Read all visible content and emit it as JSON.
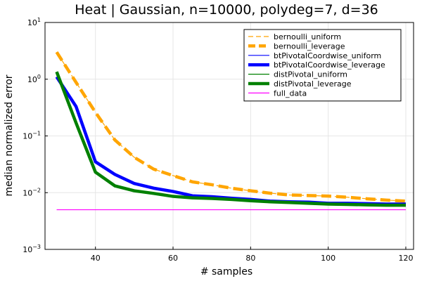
{
  "chart_data": {
    "type": "line",
    "title": "Heat | Gaussian, n=10000, polydeg=7, d=36",
    "xlabel": "# samples",
    "ylabel": "median normalized error",
    "xlim": [
      27,
      122
    ],
    "ylim": [
      0.001,
      10
    ],
    "yscale": "log",
    "grid": true,
    "legend_position": "top-right",
    "x_ticks": [
      40,
      60,
      80,
      100,
      120
    ],
    "x_tick_labels": [
      "40",
      "60",
      "80",
      "100",
      "120"
    ],
    "y_ticks": [
      0.001,
      0.01,
      0.1,
      1,
      10
    ],
    "y_tick_labels": [
      {
        "base": "10",
        "exp": "−3"
      },
      {
        "base": "10",
        "exp": "−2"
      },
      {
        "base": "10",
        "exp": "−1"
      },
      {
        "base": "10",
        "exp": "0"
      },
      {
        "base": "10",
        "exp": "1"
      }
    ],
    "x": [
      30,
      35,
      40,
      45,
      50,
      55,
      60,
      65,
      70,
      75,
      80,
      85,
      90,
      95,
      100,
      105,
      110,
      115,
      120
    ],
    "series": [
      {
        "name": "bernoulli_uniform",
        "color": "#FFA500",
        "width": 1.2,
        "dash": "8,5",
        "values": [
          3.0,
          0.88,
          0.26,
          0.085,
          0.042,
          0.026,
          0.02,
          0.0155,
          0.0138,
          0.012,
          0.0108,
          0.0098,
          0.0091,
          0.0089,
          0.0087,
          0.0083,
          0.0078,
          0.0074,
          0.0071
        ]
      },
      {
        "name": "bernoulli_leverage",
        "color": "#FFA500",
        "width": 4.5,
        "dash": "14,7",
        "values": [
          3.0,
          0.88,
          0.26,
          0.085,
          0.042,
          0.026,
          0.02,
          0.0155,
          0.0138,
          0.012,
          0.0108,
          0.0098,
          0.0091,
          0.0089,
          0.0087,
          0.0083,
          0.0078,
          0.0074,
          0.0071
        ]
      },
      {
        "name": "btPivotalCoordwise_uniform",
        "color": "#0000FF",
        "width": 1.2,
        "dash": "",
        "values": [
          1.1,
          0.33,
          0.035,
          0.021,
          0.0145,
          0.012,
          0.0105,
          0.0088,
          0.0085,
          0.008,
          0.0076,
          0.0071,
          0.0069,
          0.0068,
          0.0065,
          0.0065,
          0.0064,
          0.0063,
          0.0063
        ]
      },
      {
        "name": "btPivotalCoordwise_leverage",
        "color": "#0000FF",
        "width": 4.5,
        "dash": "",
        "values": [
          1.1,
          0.33,
          0.035,
          0.021,
          0.0145,
          0.012,
          0.0105,
          0.0088,
          0.0085,
          0.008,
          0.0076,
          0.0071,
          0.0069,
          0.0068,
          0.0065,
          0.0065,
          0.0064,
          0.0063,
          0.0063
        ]
      },
      {
        "name": "distPivotal_uniform",
        "color": "#008000",
        "width": 1.2,
        "dash": "",
        "values": [
          1.35,
          0.17,
          0.023,
          0.0132,
          0.0108,
          0.0097,
          0.0086,
          0.0081,
          0.0079,
          0.0076,
          0.0072,
          0.0069,
          0.0067,
          0.0065,
          0.0063,
          0.0062,
          0.0061,
          0.006,
          0.006
        ]
      },
      {
        "name": "distPivotal_leverage",
        "color": "#008000",
        "width": 4.5,
        "dash": "",
        "values": [
          1.35,
          0.17,
          0.023,
          0.0132,
          0.0108,
          0.0097,
          0.0086,
          0.0081,
          0.0079,
          0.0076,
          0.0072,
          0.0069,
          0.0067,
          0.0065,
          0.0063,
          0.0062,
          0.0061,
          0.006,
          0.006
        ]
      },
      {
        "name": "full_data",
        "color": "#FF00FF",
        "width": 1.2,
        "dash": "",
        "values": [
          0.005,
          0.005,
          0.005,
          0.005,
          0.005,
          0.005,
          0.005,
          0.005,
          0.005,
          0.005,
          0.005,
          0.005,
          0.005,
          0.005,
          0.005,
          0.005,
          0.005,
          0.005,
          0.005
        ]
      }
    ]
  }
}
